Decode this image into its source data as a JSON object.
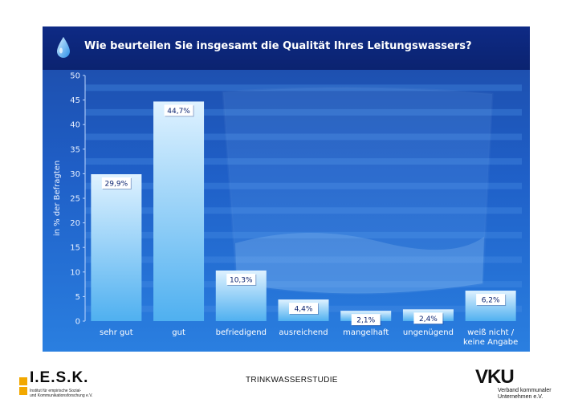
{
  "chart_data": {
    "type": "bar",
    "title": "Wie beurteilen Sie insgesamt die Qualität Ihres Leitungswassers?",
    "ylabel": "in % der Befragten",
    "xlabel": "",
    "ylim": [
      0,
      50
    ],
    "yticks": [
      "0",
      "5",
      "10",
      "15",
      "20",
      "25",
      "30",
      "35",
      "40",
      "45",
      "50"
    ],
    "categories": [
      [
        "sehr gut"
      ],
      [
        "gut"
      ],
      [
        "befriedigend"
      ],
      [
        "ausreichend"
      ],
      [
        "mangelhaft"
      ],
      [
        "ungenügend"
      ],
      [
        "weiß nicht /",
        "keine Angabe"
      ]
    ],
    "values": [
      29.9,
      44.7,
      10.3,
      4.4,
      2.1,
      2.4,
      6.2
    ],
    "labels": [
      "29,9%",
      "44,7%",
      "10,3%",
      "4,4%",
      "2,1%",
      "2,4%",
      "6,2%"
    ],
    "grid": true,
    "colors": {
      "bar_top": "#dff2ff",
      "bar_bottom": "#4fb0f0",
      "label_bg": "#ffffff"
    }
  },
  "footer": {
    "study": "TRINKWASSERSTUDIE",
    "iesk_name": "I.E.S.K.",
    "iesk_line1": "Institut für empirische Sozial-",
    "iesk_line2": "und Kommunikationsforschung e.V.",
    "vku_name": "VKU",
    "vku_line1": "Verband kommunaler",
    "vku_line2": "Unternehmen e.V."
  },
  "icons": {
    "title_icon": "water-drop-icon"
  }
}
